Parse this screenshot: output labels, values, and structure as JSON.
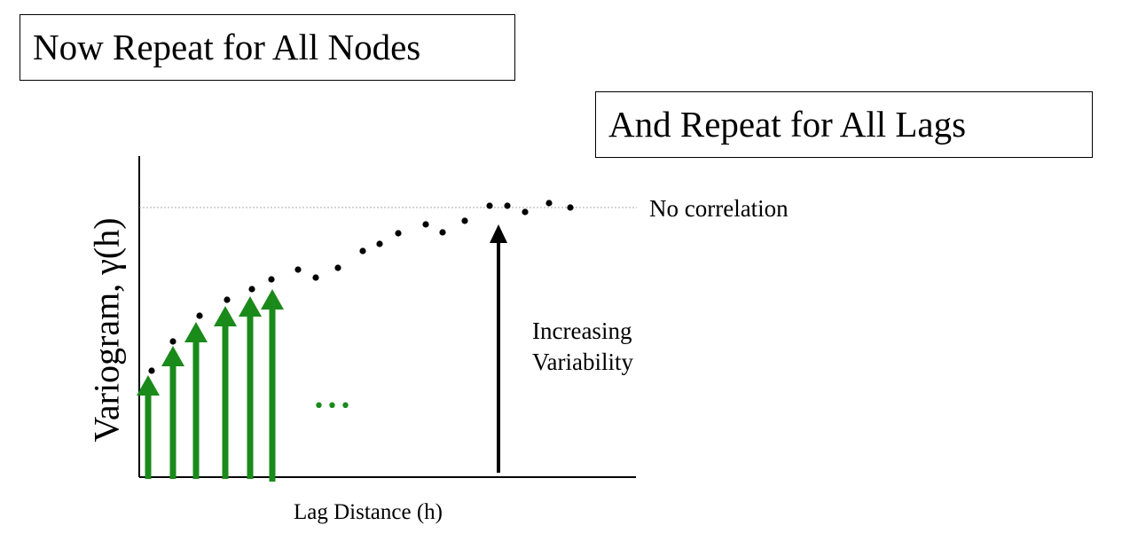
{
  "boxes": {
    "nodes": "Now Repeat for All Nodes",
    "lags": "And Repeat for All Lags"
  },
  "chart": {
    "ylabel": "Variogram, γ(h)",
    "xlabel": "Lag Distance (h)",
    "sill_label": "No correlation",
    "increase_label": [
      "Increasing",
      "Variability"
    ],
    "ellipsis": "•••"
  },
  "colors": {
    "arrows": "#1a8a1a",
    "points": "#000000",
    "sill": "#aaaaaa"
  },
  "icons": [
    "arrow-up-icon"
  ]
}
